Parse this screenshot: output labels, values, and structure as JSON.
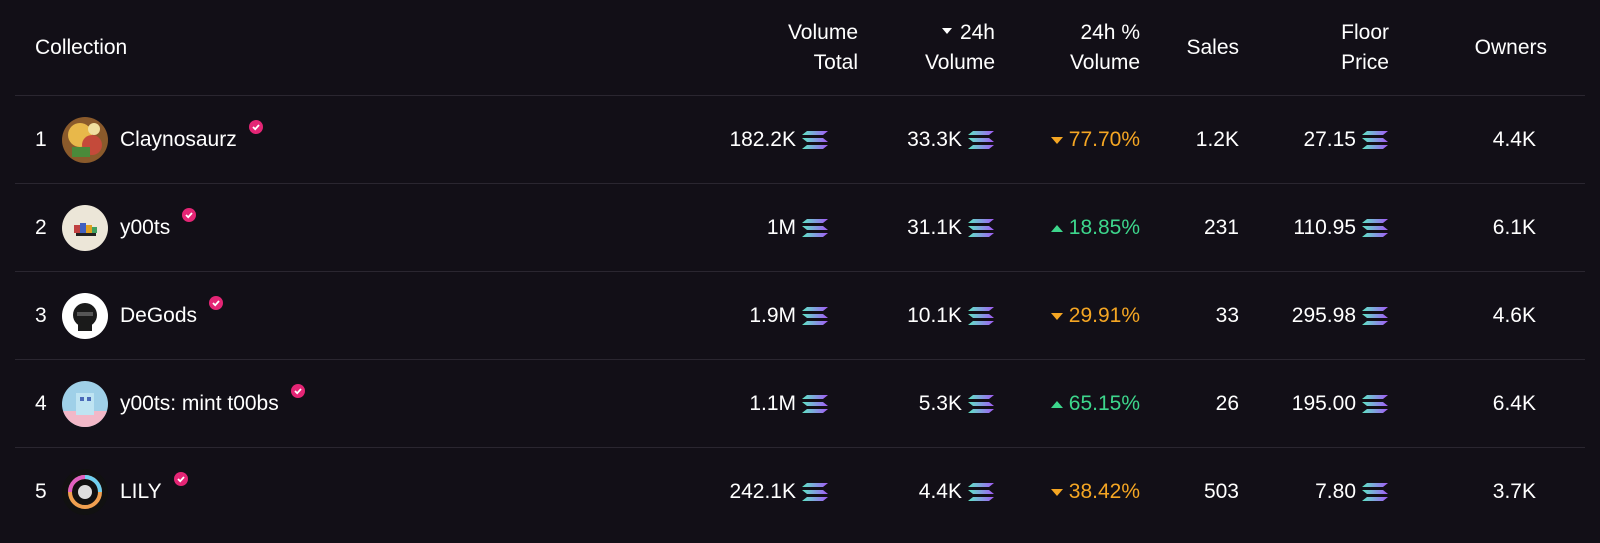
{
  "header": {
    "collection": "Collection",
    "volume_total": [
      "Volume",
      "Total"
    ],
    "volume_24h": [
      "24h",
      "Volume"
    ],
    "pct_24h": [
      "24h %",
      "Volume"
    ],
    "sales": "Sales",
    "floor_price": [
      "Floor",
      "Price"
    ],
    "owners": "Owners"
  },
  "colors": {
    "background": "#120f17",
    "divider": "#2a2630",
    "down": "#f5a623",
    "up": "#3dd68c",
    "verified": "#e42575"
  },
  "rows": [
    {
      "rank": "1",
      "name": "Claynosaurz",
      "avatar_icon": "claynosaurz-avatar",
      "volume_total": "182.2K",
      "volume_24h": "33.3K",
      "pct": "77.70%",
      "direction": "down",
      "sales": "1.2K",
      "floor": "27.15",
      "owners": "4.4K"
    },
    {
      "rank": "2",
      "name": "y00ts",
      "avatar_icon": "y00ts-avatar",
      "volume_total": "1M",
      "volume_24h": "31.1K",
      "pct": "18.85%",
      "direction": "up",
      "sales": "231",
      "floor": "110.95",
      "owners": "6.1K"
    },
    {
      "rank": "3",
      "name": "DeGods",
      "avatar_icon": "degods-avatar",
      "volume_total": "1.9M",
      "volume_24h": "10.1K",
      "pct": "29.91%",
      "direction": "down",
      "sales": "33",
      "floor": "295.98",
      "owners": "4.6K"
    },
    {
      "rank": "4",
      "name": "y00ts: mint t00bs",
      "avatar_icon": "t00bs-avatar",
      "volume_total": "1.1M",
      "volume_24h": "5.3K",
      "pct": "65.15%",
      "direction": "up",
      "sales": "26",
      "floor": "195.00",
      "owners": "6.4K"
    },
    {
      "rank": "5",
      "name": "LILY",
      "avatar_icon": "lily-avatar",
      "volume_total": "242.1K",
      "volume_24h": "4.4K",
      "pct": "38.42%",
      "direction": "down",
      "sales": "503",
      "floor": "7.80",
      "owners": "3.7K"
    }
  ]
}
